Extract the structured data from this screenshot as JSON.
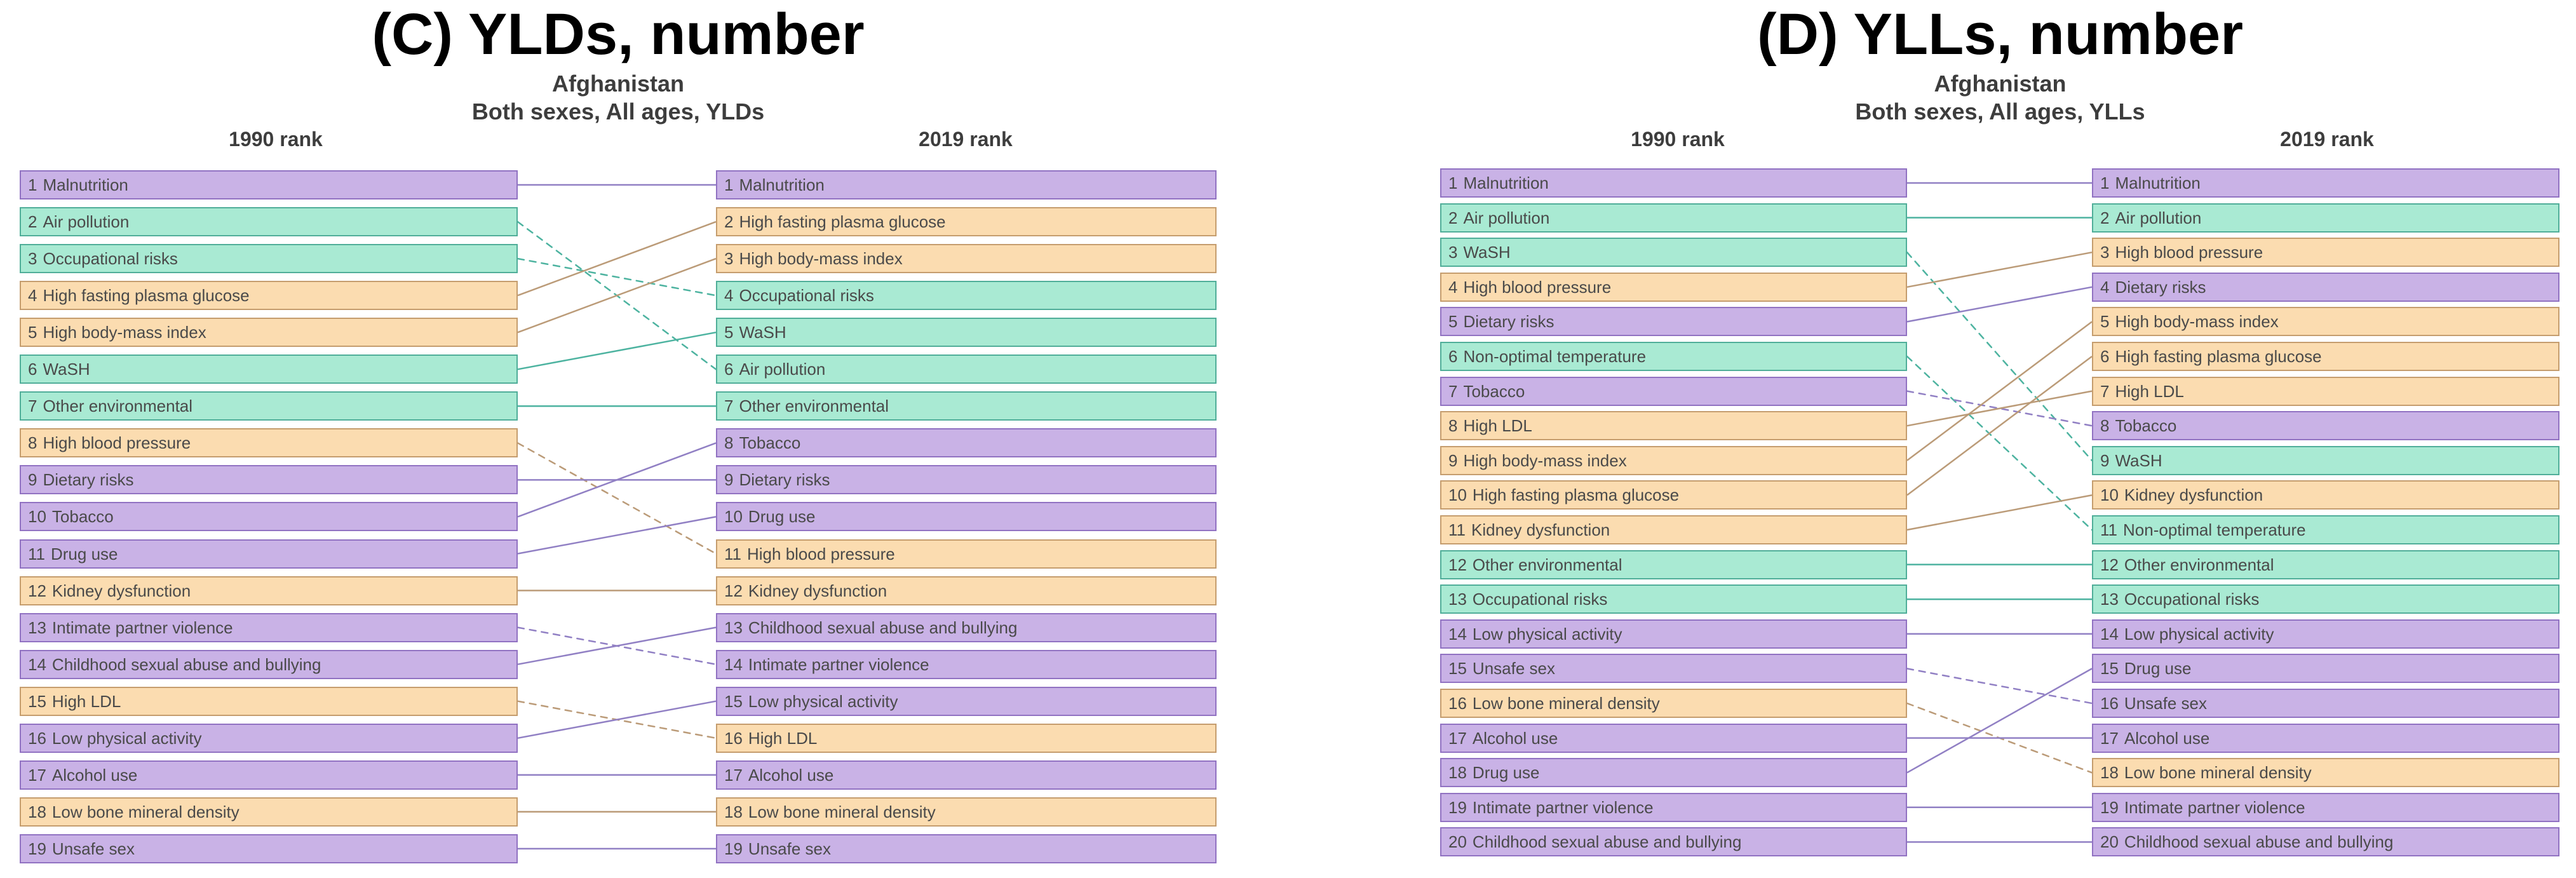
{
  "chart_data": {
    "type": "line",
    "subtype": "rank-slope-diagram",
    "style_rule": {
      "solid_line": "rank unchanged or improved from 1990 to 2019",
      "dashed_line": "rank worsened (moved down) from 1990 to 2019"
    },
    "panels": [
      {
        "title": "(C) YLDs, number",
        "subtitle_lines": [
          "Afghanistan",
          "Both sexes, All ages, YLDs"
        ],
        "column_headers": {
          "left": "1990 rank",
          "right": "2019 rank"
        },
        "risks": [
          {
            "name": "Malnutrition",
            "category": "behavioral",
            "rank_1990": 1,
            "rank_2019": 1
          },
          {
            "name": "Air pollution",
            "category": "environmental",
            "rank_1990": 2,
            "rank_2019": 6
          },
          {
            "name": "Occupational risks",
            "category": "environmental",
            "rank_1990": 3,
            "rank_2019": 4
          },
          {
            "name": "High fasting plasma glucose",
            "category": "metabolic",
            "rank_1990": 4,
            "rank_2019": 2
          },
          {
            "name": "High body-mass index",
            "category": "metabolic",
            "rank_1990": 5,
            "rank_2019": 3
          },
          {
            "name": "WaSH",
            "category": "environmental",
            "rank_1990": 6,
            "rank_2019": 5
          },
          {
            "name": "Other environmental",
            "category": "environmental",
            "rank_1990": 7,
            "rank_2019": 7
          },
          {
            "name": "High blood pressure",
            "category": "metabolic",
            "rank_1990": 8,
            "rank_2019": 11
          },
          {
            "name": "Dietary risks",
            "category": "behavioral",
            "rank_1990": 9,
            "rank_2019": 9
          },
          {
            "name": "Tobacco",
            "category": "behavioral",
            "rank_1990": 10,
            "rank_2019": 8
          },
          {
            "name": "Drug use",
            "category": "behavioral",
            "rank_1990": 11,
            "rank_2019": 10
          },
          {
            "name": "Kidney dysfunction",
            "category": "metabolic",
            "rank_1990": 12,
            "rank_2019": 12
          },
          {
            "name": "Intimate partner violence",
            "category": "behavioral",
            "rank_1990": 13,
            "rank_2019": 14
          },
          {
            "name": "Childhood sexual abuse and bullying",
            "category": "behavioral",
            "rank_1990": 14,
            "rank_2019": 13
          },
          {
            "name": "High LDL",
            "category": "metabolic",
            "rank_1990": 15,
            "rank_2019": 16
          },
          {
            "name": "Low physical activity",
            "category": "behavioral",
            "rank_1990": 16,
            "rank_2019": 15
          },
          {
            "name": "Alcohol use",
            "category": "behavioral",
            "rank_1990": 17,
            "rank_2019": 17
          },
          {
            "name": "Low bone mineral density",
            "category": "metabolic",
            "rank_1990": 18,
            "rank_2019": 18
          },
          {
            "name": "Unsafe sex",
            "category": "behavioral",
            "rank_1990": 19,
            "rank_2019": 19
          }
        ]
      },
      {
        "title": "(D) YLLs, number",
        "subtitle_lines": [
          "Afghanistan",
          "Both sexes, All ages, YLLs"
        ],
        "column_headers": {
          "left": "1990 rank",
          "right": "2019 rank"
        },
        "risks": [
          {
            "name": "Malnutrition",
            "category": "behavioral",
            "rank_1990": 1,
            "rank_2019": 1
          },
          {
            "name": "Air pollution",
            "category": "environmental",
            "rank_1990": 2,
            "rank_2019": 2
          },
          {
            "name": "WaSH",
            "category": "environmental",
            "rank_1990": 3,
            "rank_2019": 9
          },
          {
            "name": "High blood pressure",
            "category": "metabolic",
            "rank_1990": 4,
            "rank_2019": 3
          },
          {
            "name": "Dietary risks",
            "category": "behavioral",
            "rank_1990": 5,
            "rank_2019": 4
          },
          {
            "name": "Non-optimal temperature",
            "category": "environmental",
            "rank_1990": 6,
            "rank_2019": 11
          },
          {
            "name": "Tobacco",
            "category": "behavioral",
            "rank_1990": 7,
            "rank_2019": 8
          },
          {
            "name": "High LDL",
            "category": "metabolic",
            "rank_1990": 8,
            "rank_2019": 7
          },
          {
            "name": "High body-mass index",
            "category": "metabolic",
            "rank_1990": 9,
            "rank_2019": 5
          },
          {
            "name": "High fasting plasma glucose",
            "category": "metabolic",
            "rank_1990": 10,
            "rank_2019": 6
          },
          {
            "name": "Kidney dysfunction",
            "category": "metabolic",
            "rank_1990": 11,
            "rank_2019": 10
          },
          {
            "name": "Other environmental",
            "category": "environmental",
            "rank_1990": 12,
            "rank_2019": 12
          },
          {
            "name": "Occupational risks",
            "category": "environmental",
            "rank_1990": 13,
            "rank_2019": 13
          },
          {
            "name": "Low physical activity",
            "category": "behavioral",
            "rank_1990": 14,
            "rank_2019": 14
          },
          {
            "name": "Unsafe sex",
            "category": "behavioral",
            "rank_1990": 15,
            "rank_2019": 16
          },
          {
            "name": "Low bone mineral density",
            "category": "metabolic",
            "rank_1990": 16,
            "rank_2019": 18
          },
          {
            "name": "Alcohol use",
            "category": "behavioral",
            "rank_1990": 17,
            "rank_2019": 17
          },
          {
            "name": "Drug use",
            "category": "behavioral",
            "rank_1990": 18,
            "rank_2019": 15
          },
          {
            "name": "Intimate partner violence",
            "category": "behavioral",
            "rank_1990": 19,
            "rank_2019": 19
          },
          {
            "name": "Childhood sexual abuse and bullying",
            "category": "behavioral",
            "rank_1990": 20,
            "rank_2019": 20
          }
        ]
      }
    ]
  },
  "colors": {
    "background": "#ffffff",
    "title": "#000000",
    "header_text": "#3d3d3d",
    "box_text": "#4a4a4a",
    "categories": {
      "behavioral": {
        "fill": "#c9b2e6",
        "border": "#9172c2",
        "line": "#9180c4"
      },
      "environmental": {
        "fill": "#a9ead3",
        "border": "#50ae99",
        "line": "#4db3a0"
      },
      "metabolic": {
        "fill": "#fbdcb0",
        "border": "#c59d6e",
        "line": "#bb9b78"
      }
    }
  }
}
